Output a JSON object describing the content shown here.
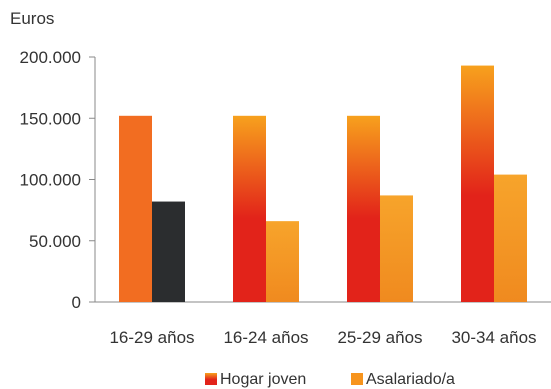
{
  "chart_data": {
    "type": "bar",
    "ylabel": "Euros",
    "ylim": [
      0,
      200000
    ],
    "yticks": [
      {
        "value": 0,
        "label": "0"
      },
      {
        "value": 50000,
        "label": "50.000"
      },
      {
        "value": 100000,
        "label": "100.000"
      },
      {
        "value": 150000,
        "label": "150.000"
      },
      {
        "value": 200000,
        "label": "200.000"
      }
    ],
    "categories": [
      "16-29 años",
      "16-24 años",
      "25-29 años",
      "30-34 años"
    ],
    "series": [
      {
        "name": "Hogar joven",
        "values": [
          152000,
          152000,
          152000,
          193000
        ]
      },
      {
        "name": "Asalariado/a",
        "values": [
          82000,
          66000,
          87000,
          104000
        ]
      }
    ],
    "grid": false,
    "legend_position": "bottom",
    "colors": {
      "hogar_top": "#f7941d",
      "hogar_bottom": "#e2231a",
      "asalariado": "#f7941d",
      "first_hogar": "#f26d21",
      "first_asalariado": "#2b2d2f",
      "axis": "#888888"
    }
  }
}
